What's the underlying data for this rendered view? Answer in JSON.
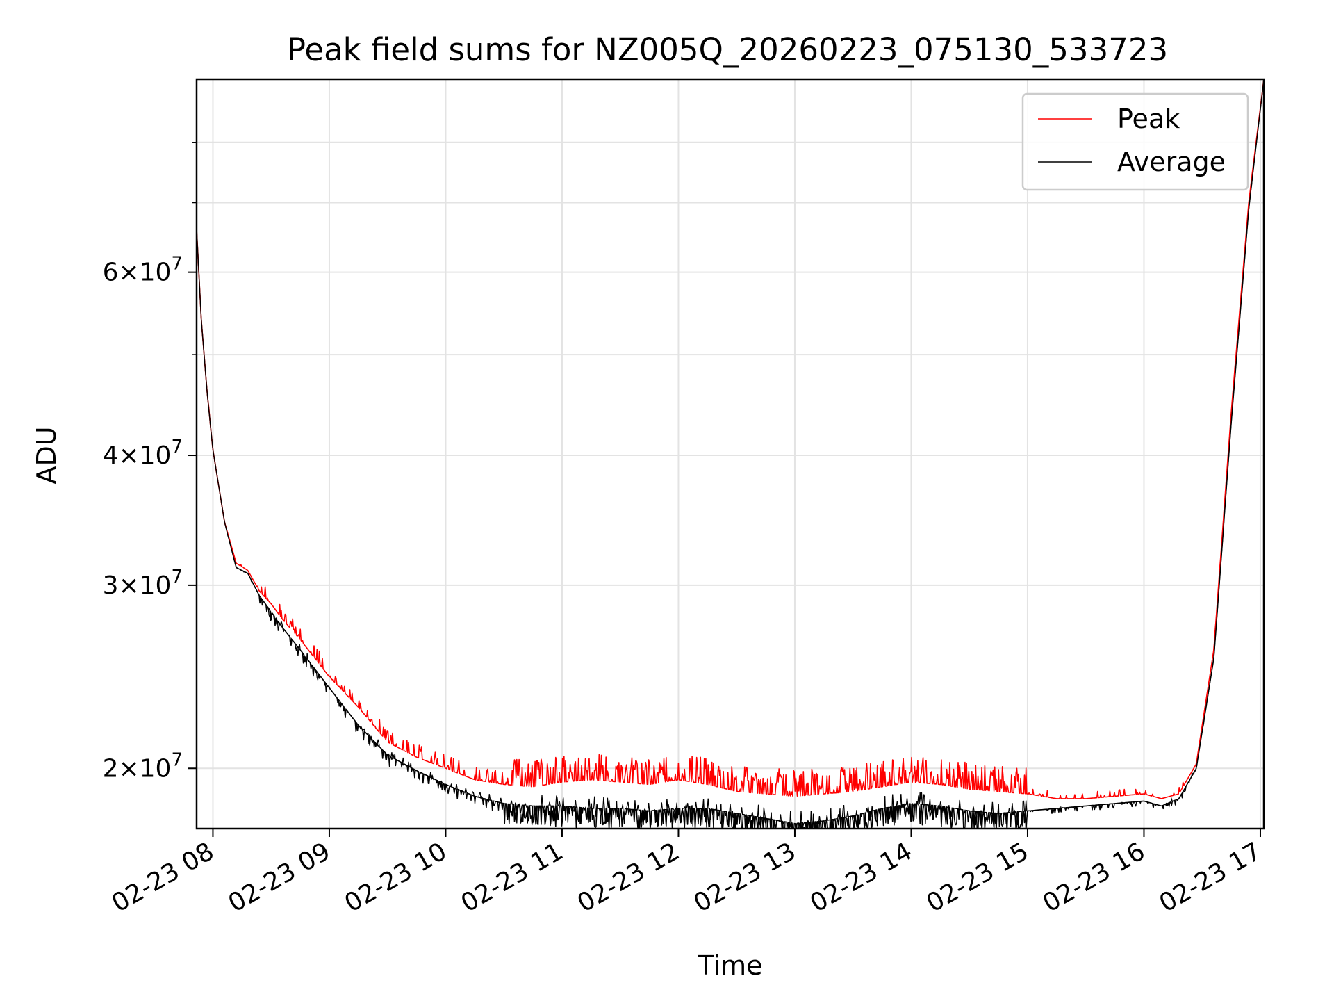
{
  "chart_data": {
    "type": "line",
    "title": "Peak field sums for NZ005Q_20260223_075130_533723",
    "xlabel": "Time",
    "ylabel": "ADU",
    "yscale": "log",
    "ylim": [
      17500000,
      92000000
    ],
    "xlim_hours": [
      7.86,
      17.03
    ],
    "grid": true,
    "legend_position": "upper right",
    "x_ticks": [
      {
        "hour": 8,
        "label": "02-23 08"
      },
      {
        "hour": 9,
        "label": "02-23 09"
      },
      {
        "hour": 10,
        "label": "02-23 10"
      },
      {
        "hour": 11,
        "label": "02-23 11"
      },
      {
        "hour": 12,
        "label": "02-23 12"
      },
      {
        "hour": 13,
        "label": "02-23 13"
      },
      {
        "hour": 14,
        "label": "02-23 14"
      },
      {
        "hour": 15,
        "label": "02-23 15"
      },
      {
        "hour": 16,
        "label": "02-23 16"
      },
      {
        "hour": 17,
        "label": "02-23 17"
      }
    ],
    "y_ticks": [
      {
        "value": 20000000,
        "mantissa": "2",
        "exponent": "7"
      },
      {
        "value": 30000000,
        "mantissa": "3",
        "exponent": "7"
      },
      {
        "value": 40000000,
        "mantissa": "4",
        "exponent": "7"
      },
      {
        "value": 60000000,
        "mantissa": "6",
        "exponent": "7"
      }
    ],
    "y_minor_ticks": [
      50000000,
      70000000,
      80000000
    ],
    "series": [
      {
        "name": "Peak",
        "color": "#ff0000",
        "role": "upper envelope with spikes",
        "x_hours": [
          7.86,
          7.9,
          7.95,
          8.0,
          8.1,
          8.2,
          8.3,
          8.4,
          8.5,
          8.6,
          8.75,
          9.0,
          9.25,
          9.5,
          9.75,
          10.0,
          10.25,
          10.5,
          10.75,
          11.0,
          11.25,
          11.5,
          11.75,
          12.0,
          12.25,
          12.5,
          12.75,
          13.0,
          13.25,
          13.5,
          13.75,
          14.0,
          14.25,
          14.5,
          14.75,
          15.0,
          15.25,
          15.5,
          15.75,
          16.0,
          16.15,
          16.3,
          16.45,
          16.6,
          16.75,
          16.9,
          17.03
        ],
        "values": [
          66000000,
          54000000,
          46000000,
          40500000,
          34500000,
          31500000,
          31000000,
          29600000,
          28800000,
          27800000,
          26600000,
          24500000,
          22900000,
          21200000,
          20500000,
          20000000,
          19500000,
          19300000,
          19200000,
          19400000,
          19500000,
          19400000,
          19300000,
          19500000,
          19300000,
          19000000,
          18900000,
          18800000,
          18900000,
          19000000,
          19200000,
          19400000,
          19300000,
          19100000,
          19000000,
          18900000,
          18700000,
          18700000,
          18800000,
          18900000,
          18700000,
          18900000,
          20200000,
          26000000,
          44000000,
          70000000,
          92000000
        ]
      },
      {
        "name": "Average",
        "color": "#000000",
        "role": "smooth baseline with dips",
        "x_hours": [
          7.86,
          7.9,
          7.95,
          8.0,
          8.1,
          8.2,
          8.3,
          8.4,
          8.5,
          8.6,
          8.75,
          9.0,
          9.25,
          9.5,
          9.75,
          10.0,
          10.25,
          10.5,
          10.75,
          11.0,
          11.25,
          11.5,
          11.75,
          12.0,
          12.25,
          12.5,
          12.75,
          13.0,
          13.25,
          13.5,
          13.75,
          14.0,
          14.25,
          14.5,
          14.75,
          15.0,
          15.25,
          15.5,
          15.75,
          16.0,
          16.15,
          16.3,
          16.45,
          16.6,
          16.75,
          16.9,
          17.03
        ],
        "values": [
          66000000,
          54000000,
          46000000,
          40500000,
          34500000,
          31200000,
          30800000,
          29300000,
          28300000,
          27300000,
          26000000,
          23900000,
          22000000,
          20600000,
          19900000,
          19300000,
          18800000,
          18500000,
          18400000,
          18400000,
          18300000,
          18300000,
          18200000,
          18300000,
          18300000,
          18100000,
          17900000,
          17700000,
          17800000,
          18000000,
          18300000,
          18500000,
          18400000,
          18200000,
          18100000,
          18200000,
          18300000,
          18400000,
          18500000,
          18600000,
          18400000,
          18700000,
          20000000,
          25500000,
          43000000,
          69000000,
          92000000
        ]
      }
    ]
  }
}
